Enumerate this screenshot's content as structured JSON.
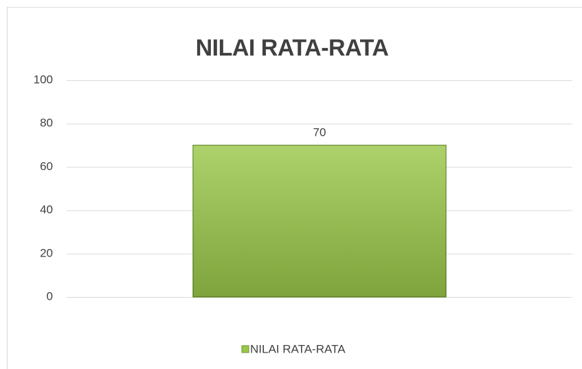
{
  "chart_data": {
    "type": "bar",
    "title": "NILAI RATA-RATA",
    "categories": [
      null
    ],
    "series": [
      {
        "name": "NILAI RATA-RATA",
        "color": "#9bc84a",
        "values": [
          70
        ]
      }
    ],
    "ylim": [
      0,
      100
    ],
    "yticks": [
      0,
      20,
      40,
      60,
      80,
      100
    ],
    "grid": true,
    "legend": "bottom"
  }
}
